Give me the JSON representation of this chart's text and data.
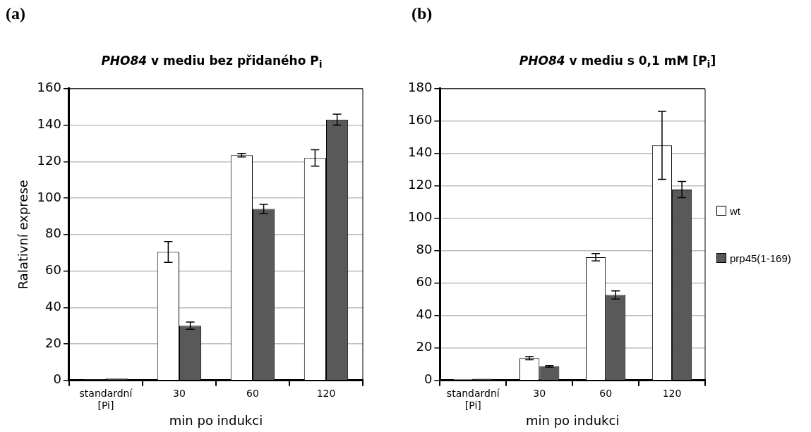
{
  "chart_data": [
    {
      "type": "bar",
      "title": "PHO84 v mediu bez přidaného P$_{i}$",
      "annotations": [
        "(a)"
      ],
      "categories": [
        "standardní [Pi]",
        "30",
        "60",
        "120"
      ],
      "xlabel": "min po indukci",
      "ylabel": "Ralativní exprese",
      "ylim": [
        0,
        160
      ],
      "yticks": [
        0,
        20,
        40,
        60,
        80,
        100,
        120,
        140,
        160
      ],
      "grid": "y",
      "legend": false,
      "series": [
        {
          "color": "#ffffff",
          "values": [
            0.5,
            70.5,
            123.5,
            122
          ],
          "errors": [
            null,
            5.7,
            1,
            4.5
          ]
        },
        {
          "color": "#595959",
          "values": [
            1,
            30,
            94,
            143
          ],
          "errors": [
            null,
            2,
            2.5,
            3
          ]
        }
      ]
    },
    {
      "type": "bar",
      "title": "PHO84 v mediu s 0,1 mM [P$_{i}$]",
      "annotations": [
        "(b)"
      ],
      "categories": [
        "standardní [Pi]",
        "30",
        "60",
        "120"
      ],
      "xlabel": "min po indukci",
      "ylim": [
        0,
        180
      ],
      "yticks": [
        0,
        20,
        40,
        60,
        80,
        100,
        120,
        140,
        160,
        180
      ],
      "grid": "y",
      "legend": "right",
      "series": [
        {
          "name": "wt",
          "color": "#ffffff",
          "values": [
            0.8,
            13.7,
            76,
            145
          ],
          "errors": [
            null,
            1,
            2.3,
            21
          ]
        },
        {
          "name": "prp45(1-169)",
          "color": "#595959",
          "values": [
            1,
            8.7,
            52.7,
            117.7
          ],
          "errors": [
            null,
            0.5,
            2.5,
            5
          ]
        }
      ]
    }
  ]
}
